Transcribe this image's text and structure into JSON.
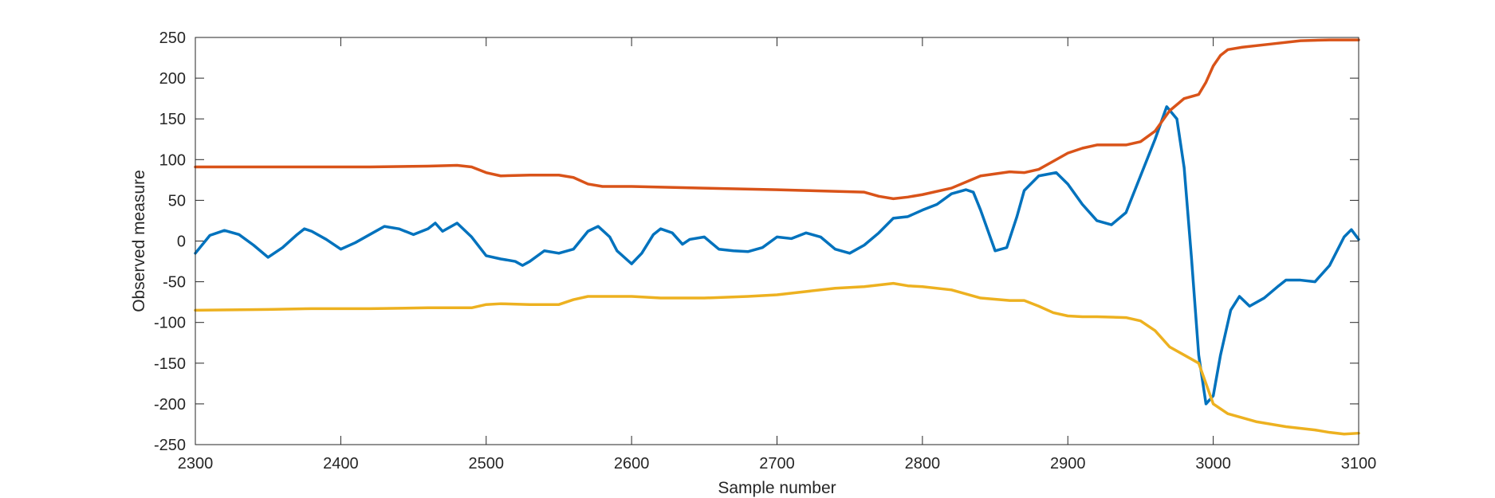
{
  "chart_data": {
    "type": "line",
    "title": "",
    "xlabel": "Sample number",
    "ylabel": "Observed measure",
    "xlim": [
      2300,
      3100
    ],
    "ylim": [
      -250,
      250
    ],
    "xticks": [
      2300,
      2400,
      2500,
      2600,
      2700,
      2800,
      2900,
      3000,
      3100
    ],
    "yticks": [
      -250,
      -200,
      -150,
      -100,
      -50,
      0,
      50,
      100,
      150,
      200,
      250
    ],
    "xtick_labels": [
      "2300",
      "2400",
      "2500",
      "2600",
      "2700",
      "2800",
      "2900",
      "3000",
      "3100"
    ],
    "ytick_labels": [
      "-250",
      "-200",
      "-150",
      "-100",
      "-50",
      "0",
      "50",
      "100",
      "150",
      "200",
      "250"
    ],
    "grid": false,
    "legend": "none",
    "series": [
      {
        "color": "#0072BD",
        "x": [
          2300,
          2310,
          2320,
          2330,
          2340,
          2350,
          2360,
          2370,
          2375,
          2380,
          2390,
          2400,
          2410,
          2420,
          2430,
          2440,
          2450,
          2460,
          2465,
          2470,
          2480,
          2490,
          2500,
          2510,
          2520,
          2525,
          2530,
          2540,
          2550,
          2560,
          2570,
          2577,
          2585,
          2590,
          2600,
          2607,
          2615,
          2620,
          2628,
          2635,
          2640,
          2650,
          2660,
          2670,
          2680,
          2690,
          2700,
          2710,
          2720,
          2730,
          2740,
          2750,
          2760,
          2770,
          2780,
          2790,
          2800,
          2810,
          2820,
          2830,
          2835,
          2840,
          2850,
          2858,
          2865,
          2870,
          2880,
          2892,
          2900,
          2910,
          2920,
          2930,
          2940,
          2950,
          2960,
          2968,
          2975,
          2980,
          2985,
          2990,
          2995,
          3000,
          3005,
          3012,
          3018,
          3025,
          3035,
          3045,
          3050,
          3060,
          3070,
          3080,
          3090,
          3095,
          3100
        ],
        "values": [
          -15,
          7,
          13,
          8,
          -5,
          -20,
          -8,
          8,
          15,
          12,
          2,
          -10,
          -2,
          8,
          18,
          15,
          8,
          15,
          22,
          12,
          22,
          5,
          -18,
          -22,
          -25,
          -30,
          -25,
          -12,
          -15,
          -10,
          12,
          18,
          5,
          -12,
          -28,
          -15,
          8,
          15,
          10,
          -4,
          2,
          5,
          -10,
          -12,
          -13,
          -8,
          5,
          3,
          10,
          5,
          -10,
          -15,
          -5,
          10,
          28,
          30,
          38,
          45,
          58,
          63,
          60,
          38,
          -12,
          -8,
          30,
          62,
          80,
          84,
          70,
          45,
          25,
          20,
          35,
          80,
          125,
          165,
          150,
          90,
          -20,
          -140,
          -200,
          -190,
          -140,
          -85,
          -68,
          -80,
          -70,
          -55,
          -48,
          -48,
          -50,
          -30,
          5,
          14,
          2
        ]
      },
      {
        "color": "#D95319",
        "x": [
          2300,
          2350,
          2380,
          2420,
          2460,
          2480,
          2490,
          2500,
          2510,
          2530,
          2550,
          2560,
          2570,
          2580,
          2600,
          2650,
          2700,
          2720,
          2740,
          2760,
          2770,
          2780,
          2790,
          2800,
          2820,
          2840,
          2860,
          2870,
          2880,
          2890,
          2900,
          2910,
          2920,
          2940,
          2950,
          2960,
          2970,
          2980,
          2990,
          2995,
          3000,
          3005,
          3010,
          3020,
          3040,
          3060,
          3080,
          3100
        ],
        "values": [
          91,
          91,
          91,
          91,
          92,
          93,
          91,
          84,
          80,
          81,
          81,
          78,
          70,
          67,
          67,
          65,
          63,
          62,
          61,
          60,
          55,
          52,
          54,
          57,
          65,
          80,
          85,
          84,
          88,
          98,
          108,
          114,
          118,
          118,
          122,
          135,
          160,
          175,
          180,
          195,
          215,
          228,
          235,
          238,
          242,
          246,
          247,
          247
        ]
      },
      {
        "color": "#EDB120",
        "x": [
          2300,
          2350,
          2380,
          2420,
          2460,
          2490,
          2500,
          2510,
          2530,
          2550,
          2560,
          2570,
          2580,
          2600,
          2620,
          2650,
          2680,
          2700,
          2720,
          2740,
          2760,
          2780,
          2790,
          2800,
          2820,
          2840,
          2860,
          2870,
          2880,
          2890,
          2900,
          2910,
          2920,
          2940,
          2950,
          2960,
          2970,
          2980,
          2990,
          2995,
          3000,
          3010,
          3030,
          3050,
          3070,
          3080,
          3090,
          3100
        ],
        "values": [
          -85,
          -84,
          -83,
          -83,
          -82,
          -82,
          -78,
          -77,
          -78,
          -78,
          -72,
          -68,
          -68,
          -68,
          -70,
          -70,
          -68,
          -66,
          -62,
          -58,
          -56,
          -52,
          -55,
          -56,
          -60,
          -70,
          -73,
          -73,
          -80,
          -88,
          -92,
          -93,
          -93,
          -94,
          -98,
          -110,
          -130,
          -140,
          -150,
          -175,
          -200,
          -212,
          -222,
          -228,
          -232,
          -235,
          -237,
          -236
        ]
      }
    ]
  }
}
